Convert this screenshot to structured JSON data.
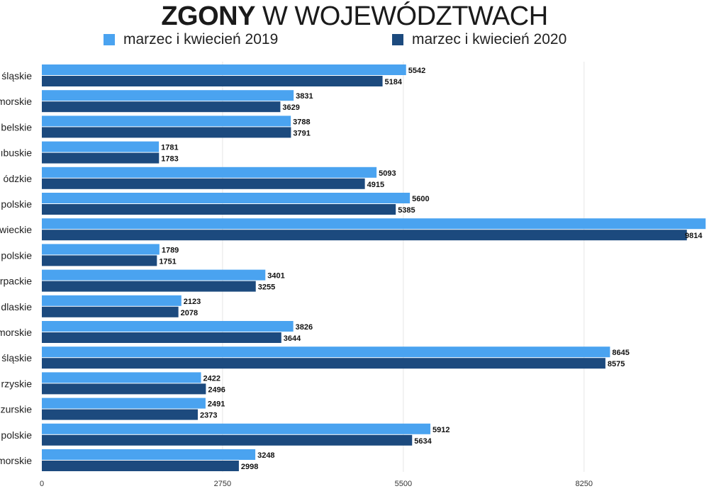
{
  "title": {
    "bold": "ZGONY",
    "light": "W WOJEWÓDZTWACH"
  },
  "legend": [
    {
      "label": "marzec i kwiecień 2019",
      "color": "#4aa3f0"
    },
    {
      "label": "marzec i kwiecień 2020",
      "color": "#1c4a7e"
    }
  ],
  "chart_data": {
    "type": "bar",
    "orientation": "horizontal",
    "categories": [
      "śląskie",
      "morskie",
      "belskie",
      "ıbuskie",
      "ódzkie",
      "polskie",
      "wieckie",
      "polskie",
      "rpackie",
      "dlaskie",
      "morskie",
      "śląskie",
      "rzyskie",
      "zurskie",
      "polskie",
      "morskie"
    ],
    "series": [
      {
        "name": "marzec i kwiecień 2019",
        "color": "#4aa3f0",
        "values": [
          5542,
          3831,
          3788,
          1781,
          5093,
          5600,
          10100,
          1789,
          3401,
          2123,
          3826,
          8645,
          2422,
          2491,
          5912,
          3248
        ],
        "labels": [
          "5542",
          "3831",
          "3788",
          "1781",
          "5093",
          "5600",
          "",
          "1789",
          "3401",
          "2123",
          "3826",
          "8645",
          "2422",
          "2491",
          "5912",
          "3248"
        ]
      },
      {
        "name": "marzec i kwiecień 2020",
        "color": "#1c4a7e",
        "values": [
          5184,
          3629,
          3791,
          1783,
          4915,
          5385,
          9814,
          1751,
          3255,
          2078,
          3644,
          8575,
          2496,
          2373,
          5634,
          2998
        ],
        "labels": [
          "5184",
          "3629",
          "3791",
          "1783",
          "4915",
          "5385",
          "9814",
          "1751",
          "3255",
          "2078",
          "3644",
          "8575",
          "2496",
          "2373",
          "5634",
          "2998"
        ]
      }
    ],
    "x_ticks": [
      0,
      2750,
      5500,
      8250
    ],
    "xlim": [
      0,
      10100
    ],
    "grid": true
  }
}
